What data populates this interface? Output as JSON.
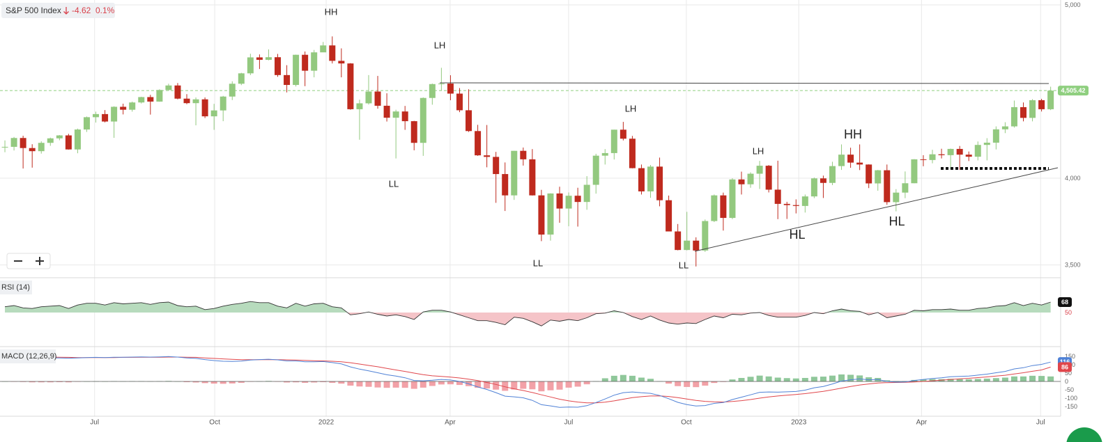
{
  "chart_data": [
    {
      "type": "candlestick",
      "title": "S&P 500 Index",
      "change": -4.62,
      "change_percent": {
        "value": 0.1,
        "label": "0.1%"
      },
      "last_price": {
        "value": 4505.42,
        "label": "4,505.42"
      },
      "up_color": "#93c97f",
      "down_color": "#bf2a1e",
      "change_color": "#d9414b",
      "last_price_color": "#8fcf7f",
      "ylim": [
        3430,
        5028
      ],
      "yticks": [
        {
          "value": 3500,
          "label": "3,500"
        },
        {
          "value": 4000,
          "label": "4,000"
        },
        {
          "value": 5000,
          "label": "5,000"
        }
      ],
      "grid": true,
      "annotations": [
        "HH",
        "LH",
        "LL",
        "LH",
        "LL",
        "LL",
        "LH",
        "HH",
        "HL",
        "HL"
      ],
      "open": [
        4180,
        4181,
        4232,
        4174,
        4156,
        4204,
        4230,
        4247,
        4166,
        4281,
        4352,
        4370,
        4327,
        4412,
        4395,
        4437,
        4468,
        4442,
        4509,
        4535,
        4459,
        4433,
        4455,
        4357,
        4391,
        4471,
        4545,
        4605,
        4697,
        4683,
        4698,
        4595,
        4538,
        4712,
        4620,
        4726,
        4766,
        4677,
        4662,
        4398,
        4432,
        4500,
        4418,
        4349,
        4385,
        4329,
        4204,
        4463,
        4543,
        4546,
        4488,
        4392,
        4272,
        4132,
        4123,
        4024,
        3901,
        4158,
        4109,
        3901,
        3675,
        3912,
        3825,
        3899,
        3863,
        3962,
        4130,
        4145,
        4280,
        4228,
        4058,
        3924,
        4067,
        3873,
        3693,
        3586,
        3640,
        3583,
        3753,
        3901,
        3771,
        3993,
        3965,
        4026,
        4072,
        3934,
        3852,
        3845,
        3840,
        3895,
        3999,
        3973,
        4070,
        4136,
        4090,
        4079,
        3970,
        4046,
        3862,
        3917,
        3971,
        4109,
        4105,
        4138,
        4133,
        4169,
        4136,
        4124,
        4192,
        4205,
        4282,
        4299,
        4410,
        4348,
        4450,
        4398
      ],
      "high": [
        4218,
        4238,
        4245,
        4196,
        4213,
        4234,
        4249,
        4256,
        4286,
        4356,
        4384,
        4393,
        4415,
        4430,
        4442,
        4470,
        4481,
        4513,
        4545,
        4549,
        4485,
        4466,
        4466,
        4429,
        4475,
        4559,
        4608,
        4718,
        4714,
        4743,
        4717,
        4652,
        4713,
        4731,
        4740,
        4786,
        4818,
        4749,
        4664,
        4453,
        4595,
        4590,
        4490,
        4395,
        4417,
        4331,
        4466,
        4546,
        4637,
        4594,
        4520,
        4513,
        4308,
        4307,
        4152,
        4091,
        4158,
        4177,
        4168,
        3933,
        3913,
        3951,
        3918,
        3945,
        4012,
        4141,
        4168,
        4280,
        4325,
        4244,
        4079,
        4076,
        4119,
        3900,
        3736,
        3806,
        3659,
        3762,
        3906,
        3917,
        4000,
        4038,
        4034,
        4100,
        4076,
        4101,
        3864,
        3878,
        3906,
        4004,
        4015,
        4095,
        4195,
        4176,
        4195,
        4080,
        4048,
        4079,
        3937,
        4039,
        4110,
        4133,
        4164,
        4170,
        4171,
        4186,
        4154,
        4212,
        4231,
        4299,
        4323,
        4448,
        4437,
        4456,
        4458,
        4528
      ],
      "low": [
        4150,
        4160,
        4056,
        4061,
        4142,
        4187,
        4219,
        4165,
        4144,
        4267,
        4321,
        4322,
        4233,
        4368,
        4384,
        4431,
        4367,
        4441,
        4504,
        4455,
        4427,
        4305,
        4347,
        4279,
        4329,
        4451,
        4537,
        4595,
        4630,
        4680,
        4585,
        4495,
        4529,
        4531,
        4582,
        4733,
        4662,
        4582,
        4395,
        4222,
        4425,
        4401,
        4327,
        4114,
        4279,
        4161,
        4129,
        4424,
        4506,
        4450,
        4381,
        4267,
        4129,
        4063,
        3858,
        3811,
        3875,
        4073,
        3900,
        3637,
        3640,
        3743,
        3723,
        3721,
        3818,
        3911,
        4079,
        4108,
        4218,
        4057,
        3906,
        3887,
        3838,
        3693,
        3584,
        3584,
        3491,
        3575,
        3747,
        3698,
        3764,
        3906,
        3945,
        3938,
        3918,
        3764,
        3765,
        3797,
        3802,
        3885,
        3886,
        3960,
        4048,
        4060,
        4047,
        3943,
        3928,
        3847,
        3809,
        3885,
        3971,
        4069,
        4086,
        4114,
        4050,
        4048,
        4099,
        4103,
        4103,
        4166,
        4260,
        4292,
        4328,
        4328,
        4385,
        4393
      ],
      "close": [
        4181,
        4232,
        4174,
        4156,
        4204,
        4230,
        4247,
        4166,
        4281,
        4352,
        4370,
        4327,
        4412,
        4395,
        4437,
        4468,
        4442,
        4509,
        4535,
        4459,
        4433,
        4455,
        4357,
        4391,
        4471,
        4545,
        4605,
        4697,
        4683,
        4698,
        4595,
        4538,
        4712,
        4620,
        4726,
        4766,
        4677,
        4662,
        4398,
        4432,
        4500,
        4418,
        4349,
        4385,
        4329,
        4204,
        4463,
        4543,
        4546,
        4488,
        4392,
        4272,
        4132,
        4123,
        4024,
        3901,
        4158,
        4109,
        3901,
        3675,
        3912,
        3825,
        3899,
        3863,
        3962,
        4130,
        4145,
        4280,
        4228,
        4058,
        3924,
        4067,
        3873,
        3693,
        3586,
        3640,
        3583,
        3753,
        3901,
        3771,
        3993,
        3965,
        4026,
        4072,
        3934,
        3852,
        3845,
        3840,
        3895,
        3999,
        3973,
        4070,
        4136,
        4090,
        4079,
        3970,
        4046,
        3862,
        3917,
        3971,
        4109,
        4105,
        4138,
        4133,
        4169,
        4136,
        4124,
        4192,
        4205,
        4282,
        4299,
        4410,
        4348,
        4450,
        4398,
        4505.42
      ]
    },
    {
      "type": "rsi",
      "title": "RSI (14)",
      "level": 50,
      "level_color": "#d9414b",
      "color": "#333333",
      "above_color": "#b7dbbd",
      "below_color": "#f5c4c8",
      "ylim": [
        -7.6,
        108.8
      ],
      "values": [
        60,
        62,
        58,
        57,
        60,
        61,
        62,
        57,
        63,
        66,
        66,
        63,
        67,
        65,
        66,
        67,
        64,
        67,
        68,
        62,
        60,
        61,
        55,
        57,
        61,
        64,
        66,
        69,
        67,
        67,
        61,
        58,
        66,
        61,
        65,
        66,
        60,
        58,
        46,
        48,
        51,
        47,
        44,
        46,
        43,
        38,
        51,
        54,
        54,
        51,
        46,
        41,
        36,
        36,
        33,
        29,
        42,
        40,
        34,
        27,
        37,
        35,
        38,
        36,
        41,
        48,
        49,
        53,
        50,
        43,
        38,
        44,
        37,
        32,
        30,
        32,
        31,
        38,
        44,
        41,
        47,
        46,
        49,
        50,
        45,
        42,
        42,
        42,
        45,
        50,
        48,
        53,
        56,
        53,
        52,
        46,
        50,
        41,
        44,
        47,
        54,
        53,
        55,
        55,
        56,
        54,
        54,
        57,
        58,
        61,
        62,
        67,
        62,
        66,
        63,
        68
      ]
    },
    {
      "type": "macd",
      "title": "MACD (12,26,9)",
      "macd_color": "#4f81d6",
      "signal_color": "#e0464b",
      "hist_up_color": "#8fc79a",
      "hist_down_color": "#f2a1a7",
      "ylim": [
        -204,
        200
      ],
      "yticks": [
        150,
        100,
        50,
        0,
        -50,
        -100,
        -150
      ],
      "xlim": [
        -0.54,
        116.1
      ],
      "xticks": [
        {
          "value": 9.86,
          "label": "Jul"
        },
        {
          "value": 23.07,
          "label": "Oct"
        },
        {
          "value": 35.33,
          "label": "2022"
        },
        {
          "value": 48.96,
          "label": "Apr"
        },
        {
          "value": 61.99,
          "label": "Jul"
        },
        {
          "value": 74.94,
          "label": "Oct"
        },
        {
          "value": 87.3,
          "label": "2023"
        },
        {
          "value": 100.8,
          "label": "Apr"
        },
        {
          "value": 113.9,
          "label": "Jul"
        }
      ],
      "macd": [
        150,
        149,
        146,
        143,
        142,
        141,
        141,
        139,
        141,
        143,
        144,
        143,
        145,
        145,
        146,
        147,
        146,
        147,
        149,
        146,
        141,
        138,
        131,
        125,
        121,
        120,
        122,
        128,
        131,
        133,
        129,
        123,
        123,
        118,
        118,
        119,
        113,
        105,
        87,
        74,
        64,
        52,
        40,
        32,
        22,
        6,
        4,
        7,
        12,
        9,
        0,
        -14,
        -33,
        -48,
        -67,
        -88,
        -92,
        -98,
        -113,
        -139,
        -146,
        -155,
        -153,
        -154,
        -145,
        -126,
        -105,
        -82,
        -67,
        -63,
        -68,
        -71,
        -84,
        -103,
        -125,
        -138,
        -147,
        -144,
        -131,
        -126,
        -108,
        -94,
        -80,
        -65,
        -63,
        -64,
        -62,
        -60,
        -52,
        -38,
        -30,
        -15,
        2,
        10,
        15,
        10,
        12,
        0,
        -4,
        -3,
        6,
        12,
        18,
        22,
        28,
        30,
        32,
        38,
        44,
        52,
        60,
        75,
        82,
        95,
        102,
        116
      ],
      "signal": [
        150,
        150,
        149,
        148,
        147,
        146,
        145,
        144,
        143,
        143,
        143,
        143,
        143,
        144,
        144,
        145,
        145,
        145,
        146,
        146,
        145,
        144,
        141,
        138,
        135,
        132,
        130,
        130,
        130,
        130,
        130,
        129,
        128,
        126,
        124,
        123,
        121,
        118,
        112,
        104,
        96,
        88,
        78,
        69,
        60,
        50,
        41,
        34,
        30,
        26,
        21,
        14,
        5,
        -6,
        -18,
        -32,
        -44,
        -54,
        -66,
        -80,
        -93,
        -106,
        -116,
        -123,
        -128,
        -128,
        -124,
        -116,
        -106,
        -97,
        -91,
        -87,
        -86,
        -90,
        -97,
        -105,
        -113,
        -119,
        -122,
        -123,
        -120,
        -115,
        -108,
        -100,
        -93,
        -87,
        -82,
        -78,
        -73,
        -66,
        -59,
        -50,
        -40,
        -30,
        -21,
        -15,
        -9,
        -7,
        -6,
        -5,
        -3,
        0,
        4,
        8,
        12,
        16,
        19,
        23,
        27,
        32,
        37,
        45,
        52,
        61,
        69,
        86
      ],
      "histogram": [
        0,
        -1,
        -3,
        -5,
        -5,
        -5,
        -4,
        -5,
        -2,
        0,
        1,
        0,
        2,
        1,
        2,
        2,
        1,
        2,
        3,
        0,
        -4,
        -6,
        -10,
        -13,
        -14,
        -12,
        -8,
        -2,
        1,
        3,
        -1,
        -6,
        -5,
        -8,
        -6,
        -4,
        -8,
        -13,
        -25,
        -30,
        -32,
        -36,
        -38,
        -37,
        -38,
        -44,
        -37,
        -27,
        -18,
        -17,
        -21,
        -28,
        -38,
        -42,
        -49,
        -56,
        -48,
        -44,
        -47,
        -59,
        -53,
        -49,
        -37,
        -31,
        -17,
        2,
        19,
        34,
        39,
        34,
        23,
        16,
        2,
        -13,
        -28,
        -33,
        -34,
        -25,
        -9,
        -3,
        12,
        21,
        28,
        35,
        30,
        23,
        20,
        18,
        21,
        28,
        29,
        35,
        42,
        40,
        36,
        25,
        21,
        7,
        2,
        2,
        9,
        12,
        14,
        14,
        16,
        14,
        13,
        15,
        17,
        20,
        23,
        30,
        30,
        34,
        33,
        30
      ]
    }
  ]
}
